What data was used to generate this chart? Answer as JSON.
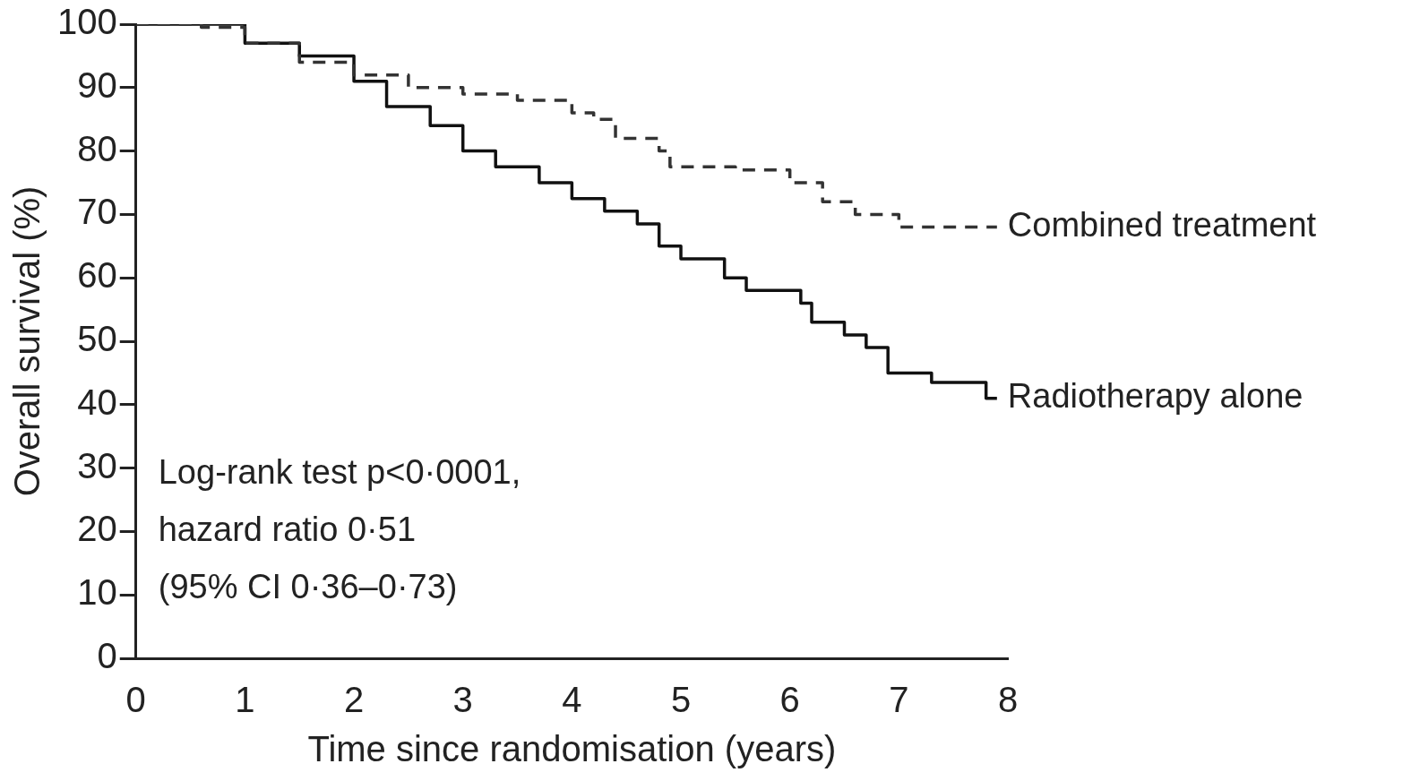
{
  "chart_data": {
    "type": "step",
    "xlabel": "Time since randomisation (years)",
    "ylabel": "Overall survival (%)",
    "xlim": [
      0,
      8
    ],
    "xticks": [
      0,
      1,
      2,
      3,
      4,
      5,
      6,
      7,
      8
    ],
    "ylim": [
      0,
      100
    ],
    "yticks": [
      0,
      10,
      20,
      30,
      40,
      50,
      60,
      70,
      80,
      90,
      100
    ],
    "grid": false,
    "legend": false,
    "marker": "none",
    "series": [
      {
        "name": "Combined treatment",
        "color": "#333333",
        "line_style": "dashed",
        "x": [
          0,
          0.6,
          1,
          1.5,
          2,
          2.5,
          3,
          3.5,
          4,
          4.2,
          4.4,
          4.8,
          4.9,
          5.5,
          6,
          6.3,
          6.6,
          7,
          7.9
        ],
        "values": [
          100,
          99.5,
          97,
          94,
          92,
          90,
          89,
          88,
          86,
          85,
          82,
          80,
          77.5,
          77,
          75,
          72,
          70,
          68,
          68
        ]
      },
      {
        "name": "Radiotherapy alone",
        "color": "#111111",
        "line_style": "solid",
        "x": [
          0,
          1,
          1.5,
          2,
          2.3,
          2.7,
          3,
          3.3,
          3.7,
          4,
          4.3,
          4.6,
          4.8,
          5,
          5.4,
          5.6,
          6.1,
          6.2,
          6.5,
          6.7,
          6.9,
          7.3,
          7.8,
          7.9
        ],
        "values": [
          100,
          97,
          95,
          91,
          87,
          84,
          80,
          77.5,
          75,
          72.5,
          70.5,
          68.5,
          65,
          63,
          60,
          58,
          56,
          53,
          51,
          49,
          45,
          43.5,
          41,
          41
        ]
      }
    ],
    "annotations": [
      "Log-rank test p<0·0001,",
      "hazard ratio 0·51",
      "(95% CI 0·36–0·73)"
    ]
  }
}
